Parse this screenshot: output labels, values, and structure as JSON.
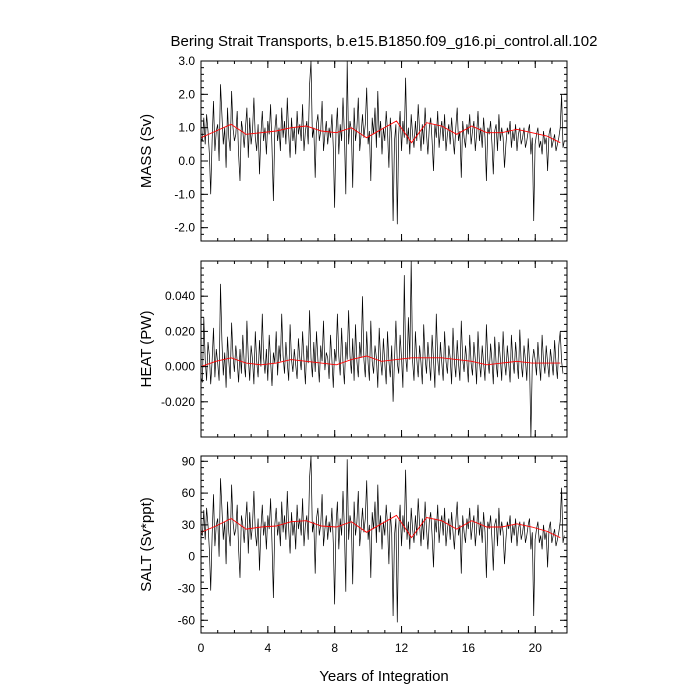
{
  "chart_data": {
    "type": "line",
    "title": "Bering Strait Transports, b.e15.B1850.f09_g16.pi_control.all.102",
    "xlabel": "Years of Integration",
    "x_ticks": [
      0,
      4,
      8,
      12,
      16,
      20
    ],
    "x_tick_labels": [
      "0",
      "4",
      "8",
      "12",
      "16",
      "20"
    ],
    "xlim": [
      0,
      21.9
    ],
    "x_step": 0.0833,
    "panels": [
      {
        "id": "mass",
        "ylabel": "MASS (Sv)",
        "ylim": [
          -2.4,
          3.0
        ],
        "yticks": [
          3.0,
          2.0,
          1.0,
          0.0,
          -1.0,
          -2.0
        ],
        "ytick_labels": [
          "3.0",
          "2.0",
          "1.0",
          "0.0",
          "-1.0",
          "-2.0"
        ],
        "monthly_series": {
          "name": "monthly",
          "color": "#000000",
          "values": [
            0.7,
            0.6,
            1.3,
            0.5,
            1.4,
            0.9,
            0.2,
            -1.0,
            0.6,
            1.8,
            0.3,
            0.9,
            1.1,
            0.0,
            2.3,
            1.4,
            0.5,
            1.0,
            -0.2,
            1.6,
            0.7,
            0.3,
            2.1,
            1.0,
            0.6,
            0.8,
            1.5,
            0.2,
            -0.6,
            1.2,
            0.9,
            0.4,
            1.0,
            1.6,
            0.1,
            1.3,
            0.5,
            0.9,
            1.9,
            0.7,
            0.3,
            1.1,
            -0.4,
            0.8,
            1.5,
            0.6,
            1.0,
            0.2,
            1.2,
            0.8,
            1.7,
            0.4,
            -1.2,
            0.9,
            1.4,
            0.6,
            1.0,
            0.3,
            1.6,
            0.7,
            1.2,
            0.5,
            1.9,
            0.8,
            0.1,
            1.3,
            0.6,
            1.0,
            0.2,
            1.5,
            0.8,
            1.1,
            0.6,
            1.7,
            0.3,
            0.9,
            1.2,
            0.5,
            2.3,
            3.0,
            0.7,
            1.0,
            -0.5,
            1.1,
            1.4,
            0.6,
            0.9,
            1.8,
            0.3,
            0.8,
            1.2,
            0.5,
            1.0,
            0.7,
            1.4,
            0.4,
            -1.4,
            0.9,
            1.6,
            0.2,
            1.1,
            0.6,
            1.9,
            0.8,
            -1.0,
            3.0,
            0.5,
            1.2,
            0.9,
            -0.8,
            1.6,
            0.6,
            1.0,
            1.9,
            0.3,
            0.8,
            1.4,
            0.7,
            1.1,
            2.2,
            0.5,
            0.9,
            -0.6,
            1.3,
            0.8,
            1.6,
            0.4,
            2.1,
            0.7,
            1.2,
            0.2,
            1.0,
            0.6,
            1.5,
            0.9,
            -0.2,
            1.3,
            0.7,
            -1.8,
            0.6,
            1.1,
            -1.9,
            0.8,
            1.5,
            0.3,
            1.2,
            0.7,
            2.5,
            0.5,
            1.0,
            0.2,
            1.4,
            0.8,
            0.4,
            1.2,
            0.6,
            1.7,
            0.9,
            0.3,
            1.1,
            0.5,
            1.6,
            0.8,
            0.2,
            1.0,
            1.3,
            0.6,
            -0.3,
            1.1,
            0.7,
            1.5,
            0.4,
            0.9,
            1.2,
            0.6,
            1.4,
            0.3,
            0.8,
            1.1,
            0.5,
            1.3,
            0.7,
            0.2,
            1.0,
            1.6,
            0.6,
            0.9,
            -0.5,
            1.2,
            0.7,
            0.4,
            1.1,
            0.8,
            1.4,
            0.5,
            0.9,
            1.2,
            0.3,
            0.8,
            1.5,
            0.6,
            1.0,
            0.4,
            1.3,
            0.7,
            -0.6,
            1.0,
            0.8,
            1.2,
            0.5,
            -0.4,
            0.9,
            1.1,
            0.3,
            1.4,
            0.6,
            1.0,
            0.7,
            -0.2,
            0.5,
            1.0,
            0.8,
            1.2,
            0.4,
            0.9,
            0.6,
            1.1,
            0.3,
            0.8,
            1.0,
            0.5,
            0.7,
            1.0,
            0.4,
            0.6,
            0.9,
            1.1,
            0.2,
            0.7,
            -1.8,
            0.5,
            0.8,
            1.0,
            0.4,
            0.6,
            0.2,
            0.9,
            0.5,
            0.7,
            -0.3,
            0.8,
            1.0,
            0.4,
            0.6,
            0.8,
            0.3,
            0.5,
            0.7,
            1.0,
            2.0,
            0.4,
            0.6
          ]
        },
        "smoothed_series": {
          "name": "running mean",
          "color": "#ff0000",
          "x": [
            0,
            0.9,
            1.8,
            2.7,
            3.6,
            4.5,
            5.4,
            6.3,
            7.2,
            8.1,
            9.0,
            9.9,
            10.8,
            11.7,
            12.6,
            13.5,
            14.4,
            15.3,
            16.2,
            17.1,
            18.0,
            18.9,
            19.8,
            20.7,
            21.5
          ],
          "values": [
            0.7,
            0.9,
            1.1,
            0.8,
            0.85,
            0.9,
            1.0,
            1.05,
            0.9,
            0.85,
            1.0,
            0.7,
            0.95,
            1.2,
            0.55,
            1.15,
            1.05,
            0.8,
            1.05,
            0.85,
            0.85,
            0.95,
            0.85,
            0.75,
            0.55
          ]
        }
      },
      {
        "id": "heat",
        "ylabel": "HEAT (PW)",
        "ylim": [
          -0.04,
          0.06
        ],
        "yticks": [
          0.04,
          0.02,
          0.0,
          -0.02
        ],
        "ytick_labels": [
          "0.040",
          "0.020",
          "0.000",
          "-0.020"
        ],
        "monthly_series": {
          "name": "monthly",
          "color": "#000000",
          "values": [
            -0.006,
            -0.009,
            0.028,
            0.004,
            -0.008,
            0.014,
            0.006,
            -0.01,
            0.003,
            0.022,
            -0.006,
            0.01,
            0.002,
            -0.008,
            0.047,
            0.015,
            -0.005,
            0.008,
            -0.012,
            0.017,
            0.003,
            -0.007,
            0.025,
            0.006,
            -0.003,
            0.012,
            0.003,
            -0.009,
            0.01,
            -0.004,
            0.018,
            0.002,
            -0.006,
            0.026,
            0.005,
            -0.008,
            0.012,
            0.004,
            -0.01,
            0.02,
            0.003,
            -0.006,
            0.015,
            0.0,
            0.03,
            0.005,
            -0.004,
            0.01,
            -0.008,
            0.018,
            0.003,
            -0.011,
            0.008,
            0.002,
            0.02,
            -0.005,
            0.012,
            0.003,
            0.03,
            0.006,
            -0.004,
            0.014,
            0.002,
            -0.008,
            0.024,
            0.004,
            -0.003,
            0.01,
            0.001,
            -0.007,
            0.016,
            0.005,
            -0.002,
            0.02,
            0.004,
            -0.01,
            0.012,
            0.002,
            0.032,
            0.005,
            -0.006,
            0.014,
            -0.003,
            0.02,
            0.004,
            -0.009,
            0.012,
            0.003,
            0.026,
            -0.002,
            0.008,
            0.005,
            -0.007,
            0.018,
            0.004,
            -0.012,
            0.01,
            0.003,
            0.03,
            0.006,
            -0.005,
            0.022,
            0.002,
            -0.01,
            0.014,
            0.004,
            0.032,
            0.006,
            -0.004,
            0.016,
            -0.008,
            0.024,
            0.003,
            -0.006,
            0.014,
            0.005,
            0.04,
            0.004,
            -0.006,
            0.02,
            0.002,
            -0.008,
            0.026,
            0.003,
            -0.004,
            0.012,
            0.005,
            -0.012,
            0.022,
            0.004,
            -0.005,
            0.016,
            0.002,
            -0.01,
            0.02,
            0.003,
            -0.006,
            0.012,
            -0.02,
            0.004,
            0.026,
            0.002,
            -0.004,
            0.018,
            0.005,
            -0.012,
            0.052,
            0.006,
            -0.003,
            0.028,
            0.004,
            0.06,
            0.003,
            -0.008,
            0.02,
            0.004,
            -0.006,
            0.012,
            0.002,
            -0.01,
            0.024,
            0.005,
            -0.004,
            0.014,
            0.003,
            -0.008,
            0.018,
            0.004,
            -0.012,
            0.03,
            0.004,
            -0.005,
            0.014,
            0.002,
            -0.008,
            0.02,
            0.003,
            -0.004,
            0.012,
            0.005,
            -0.01,
            0.022,
            0.003,
            -0.006,
            0.015,
            0.002,
            -0.008,
            0.026,
            0.004,
            -0.003,
            0.012,
            0.003,
            -0.009,
            0.018,
            0.002,
            -0.005,
            0.014,
            0.004,
            -0.01,
            0.02,
            0.003,
            -0.006,
            0.012,
            0.002,
            -0.008,
            0.024,
            0.004,
            -0.004,
            0.013,
            0.003,
            -0.01,
            0.017,
            0.002,
            -0.006,
            0.014,
            0.005,
            -0.008,
            0.02,
            0.003,
            -0.005,
            0.012,
            0.002,
            -0.009,
            0.018,
            0.004,
            -0.004,
            0.014,
            0.003,
            -0.007,
            0.021,
            0.002,
            -0.006,
            0.012,
            0.004,
            -0.008,
            0.016,
            0.003,
            -0.04,
            0.002,
            0.01,
            0.004,
            -0.005,
            0.014,
            0.002,
            -0.008,
            0.018,
            0.003,
            -0.004,
            0.012,
            0.002,
            -0.006,
            0.01,
            0.003,
            -0.005,
            0.015,
            0.002,
            -0.007,
            0.012,
            0.02,
            0.003,
            -0.004
          ]
        },
        "smoothed_series": {
          "name": "running mean",
          "color": "#ff0000",
          "x": [
            0,
            0.9,
            1.8,
            2.7,
            3.6,
            4.5,
            5.4,
            6.3,
            7.2,
            8.1,
            9.0,
            9.9,
            10.8,
            11.7,
            12.6,
            13.5,
            14.4,
            15.3,
            16.2,
            17.1,
            18.0,
            18.9,
            19.8,
            20.7,
            21.5
          ],
          "values": [
            0.0,
            0.003,
            0.005,
            0.002,
            0.001,
            0.002,
            0.004,
            0.003,
            0.002,
            0.001,
            0.004,
            0.006,
            0.003,
            0.004,
            0.005,
            0.005,
            0.005,
            0.004,
            0.003,
            0.001,
            0.002,
            0.003,
            0.002,
            0.002,
            0.002
          ]
        }
      },
      {
        "id": "salt",
        "ylabel": "SALT (Sv*ppt)",
        "ylim": [
          -72,
          95
        ],
        "yticks": [
          90,
          60,
          30,
          0,
          -30,
          -60
        ],
        "ytick_labels": [
          "90",
          "60",
          "30",
          "0",
          "-30",
          "-60"
        ],
        "monthly_series": {
          "name": "monthly",
          "color": "#000000",
          "values": [
            23,
            20,
            44,
            16,
            46,
            30,
            6,
            -32,
            19,
            59,
            10,
            30,
            36,
            0,
            74,
            46,
            16,
            33,
            -7,
            52,
            23,
            10,
            68,
            33,
            20,
            26,
            49,
            7,
            -20,
            39,
            30,
            13,
            33,
            52,
            3,
            42,
            16,
            30,
            62,
            23,
            10,
            36,
            -13,
            26,
            49,
            20,
            33,
            7,
            39,
            26,
            55,
            13,
            -39,
            30,
            46,
            20,
            33,
            10,
            52,
            23,
            39,
            16,
            62,
            26,
            3,
            42,
            20,
            33,
            7,
            49,
            26,
            36,
            20,
            55,
            10,
            30,
            39,
            16,
            75,
            95,
            23,
            33,
            -16,
            36,
            46,
            20,
            30,
            59,
            10,
            26,
            39,
            16,
            33,
            23,
            46,
            13,
            -45,
            30,
            52,
            7,
            36,
            20,
            62,
            26,
            -33,
            92,
            16,
            39,
            30,
            -26,
            52,
            20,
            33,
            62,
            10,
            26,
            46,
            23,
            36,
            72,
            16,
            30,
            -20,
            42,
            26,
            52,
            13,
            68,
            23,
            39,
            7,
            33,
            20,
            49,
            30,
            -7,
            42,
            23,
            -56,
            20,
            36,
            -62,
            26,
            49,
            10,
            39,
            23,
            82,
            16,
            33,
            7,
            46,
            26,
            13,
            39,
            20,
            55,
            30,
            10,
            36,
            16,
            52,
            26,
            7,
            33,
            42,
            20,
            -10,
            36,
            23,
            49,
            13,
            30,
            39,
            20,
            46,
            10,
            26,
            36,
            16,
            42,
            23,
            7,
            33,
            52,
            20,
            30,
            -16,
            39,
            23,
            13,
            36,
            26,
            46,
            16,
            30,
            39,
            10,
            26,
            49,
            20,
            33,
            13,
            42,
            23,
            -20,
            33,
            26,
            39,
            16,
            -13,
            30,
            36,
            10,
            46,
            20,
            33,
            23,
            -7,
            16,
            33,
            26,
            39,
            13,
            30,
            20,
            36,
            10,
            26,
            33,
            16,
            23,
            33,
            13,
            20,
            30,
            36,
            7,
            23,
            -56,
            16,
            26,
            33,
            13,
            20,
            7,
            30,
            16,
            23,
            -10,
            26,
            33,
            13,
            20,
            26,
            10,
            16,
            23,
            33,
            65,
            13,
            20
          ]
        },
        "smoothed_series": {
          "name": "running mean",
          "color": "#ff0000",
          "x": [
            0,
            0.9,
            1.8,
            2.7,
            3.6,
            4.5,
            5.4,
            6.3,
            7.2,
            8.1,
            9.0,
            9.9,
            10.8,
            11.7,
            12.6,
            13.5,
            14.4,
            15.3,
            16.2,
            17.1,
            18.0,
            18.9,
            19.8,
            20.7,
            21.5
          ],
          "values": [
            23,
            29,
            36,
            26,
            28,
            29,
            33,
            34,
            29,
            28,
            33,
            23,
            31,
            39,
            18,
            37,
            34,
            26,
            34,
            28,
            28,
            31,
            28,
            24,
            18
          ]
        }
      }
    ]
  }
}
